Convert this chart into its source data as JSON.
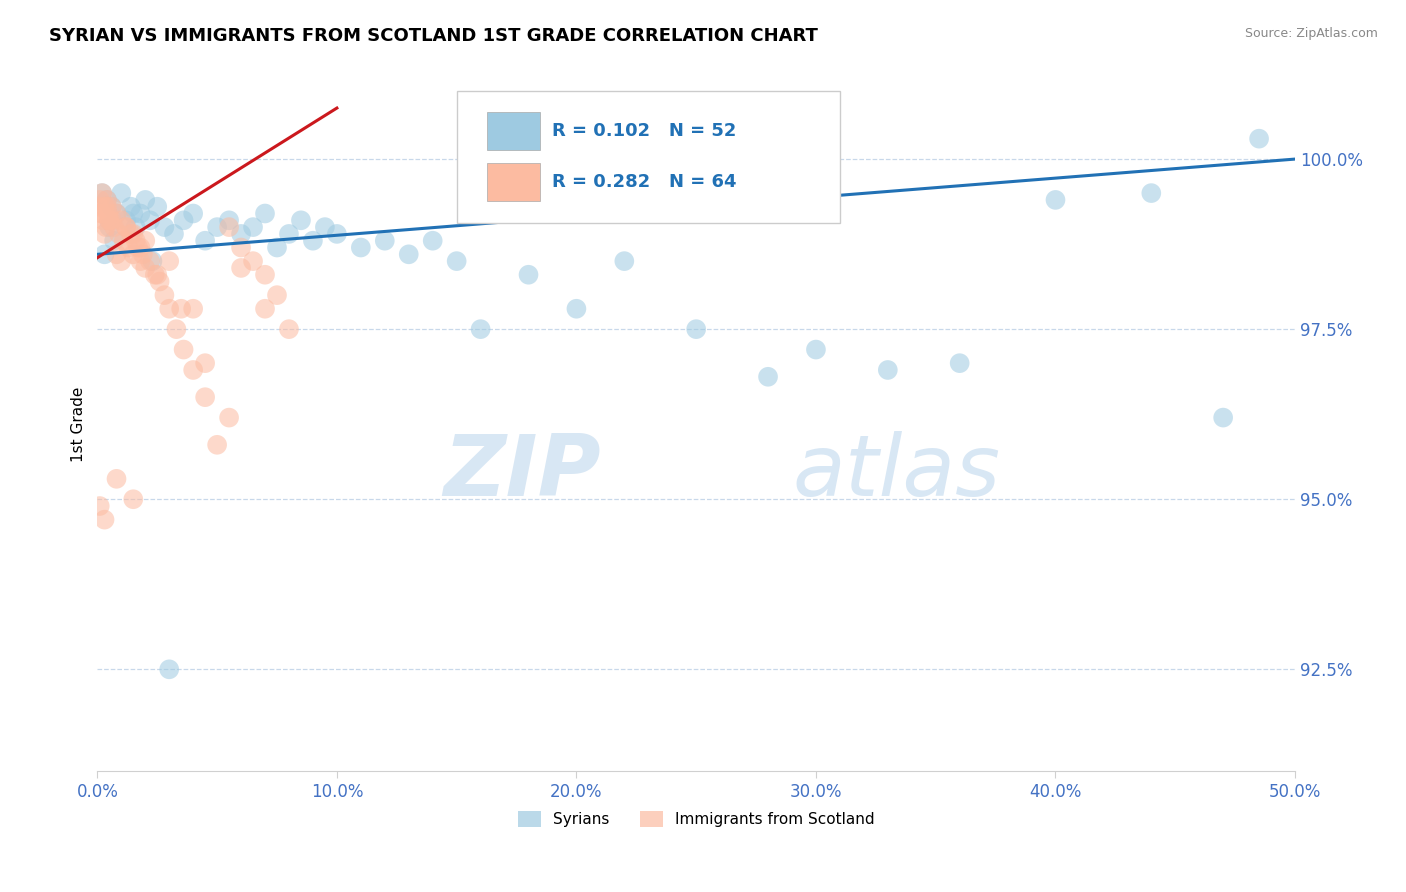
{
  "title": "SYRIAN VS IMMIGRANTS FROM SCOTLAND 1ST GRADE CORRELATION CHART",
  "source_text": "Source: ZipAtlas.com",
  "ylabel": "1st Grade",
  "xlim": [
    0.0,
    50.0
  ],
  "ylim": [
    91.0,
    101.2
  ],
  "yticks": [
    92.5,
    95.0,
    97.5,
    100.0
  ],
  "ytick_labels": [
    "92.5%",
    "95.0%",
    "97.5%",
    "100.0%"
  ],
  "xticks": [
    0.0,
    10.0,
    20.0,
    30.0,
    40.0,
    50.0
  ],
  "xtick_labels": [
    "0.0%",
    "10.0%",
    "20.0%",
    "30.0%",
    "40.0%",
    "50.0%"
  ],
  "blue_color": "#9ecae1",
  "pink_color": "#fcbba1",
  "blue_line_color": "#2171b5",
  "pink_line_color": "#cb181d",
  "legend_text_color": "#2171b5",
  "blue_line_slope": 0.028,
  "blue_line_intercept": 98.6,
  "pink_line_slope": 0.22,
  "pink_line_intercept": 98.55,
  "blue_scatter_x": [
    0.2,
    0.4,
    0.6,
    0.8,
    1.0,
    1.2,
    1.4,
    1.6,
    1.8,
    2.0,
    2.2,
    2.5,
    2.8,
    3.2,
    3.6,
    4.0,
    4.5,
    5.0,
    5.5,
    6.0,
    6.5,
    7.0,
    7.5,
    8.0,
    8.5,
    9.0,
    9.5,
    10.0,
    11.0,
    12.0,
    13.0,
    14.0,
    15.0,
    16.0,
    18.0,
    20.0,
    22.0,
    25.0,
    28.0,
    30.0,
    33.0,
    36.0,
    40.0,
    44.0,
    47.0,
    0.3,
    0.5,
    0.7,
    1.5,
    2.3,
    3.0,
    48.5
  ],
  "blue_scatter_y": [
    99.5,
    99.4,
    99.3,
    99.2,
    99.5,
    99.1,
    99.3,
    99.0,
    99.2,
    99.4,
    99.1,
    99.3,
    99.0,
    98.9,
    99.1,
    99.2,
    98.8,
    99.0,
    99.1,
    98.9,
    99.0,
    99.2,
    98.7,
    98.9,
    99.1,
    98.8,
    99.0,
    98.9,
    98.7,
    98.8,
    98.6,
    98.8,
    98.5,
    97.5,
    98.3,
    97.8,
    98.5,
    97.5,
    96.8,
    97.2,
    96.9,
    97.0,
    99.4,
    99.5,
    96.2,
    98.6,
    99.0,
    98.8,
    99.2,
    98.5,
    92.5,
    100.3
  ],
  "pink_scatter_x": [
    0.05,
    0.1,
    0.15,
    0.2,
    0.25,
    0.3,
    0.35,
    0.4,
    0.45,
    0.5,
    0.6,
    0.7,
    0.8,
    0.9,
    1.0,
    1.1,
    1.2,
    1.3,
    1.4,
    1.5,
    1.6,
    1.7,
    1.8,
    1.9,
    2.0,
    2.2,
    2.4,
    2.6,
    2.8,
    3.0,
    3.3,
    3.6,
    4.0,
    4.5,
    5.0,
    5.5,
    6.0,
    6.5,
    7.0,
    7.5,
    8.0,
    0.3,
    0.5,
    0.8,
    1.2,
    1.8,
    2.5,
    3.5,
    4.5,
    5.5,
    1.0,
    0.4,
    0.6,
    2.0,
    3.0,
    4.0,
    1.5,
    6.0,
    0.2,
    7.0,
    0.1,
    0.3,
    0.8,
    1.5
  ],
  "pink_scatter_y": [
    99.3,
    99.4,
    99.2,
    99.5,
    99.1,
    99.3,
    99.0,
    99.4,
    99.2,
    99.1,
    99.3,
    99.0,
    99.2,
    98.9,
    99.1,
    98.8,
    99.0,
    98.7,
    98.9,
    98.6,
    98.8,
    98.7,
    98.5,
    98.6,
    98.4,
    98.5,
    98.3,
    98.2,
    98.0,
    97.8,
    97.5,
    97.2,
    96.9,
    96.5,
    95.8,
    99.0,
    98.7,
    98.5,
    98.3,
    98.0,
    97.5,
    98.9,
    99.1,
    98.6,
    99.0,
    98.7,
    98.3,
    97.8,
    97.0,
    96.2,
    98.5,
    99.3,
    99.1,
    98.8,
    98.5,
    97.8,
    98.9,
    98.4,
    99.2,
    97.8,
    94.9,
    94.7,
    95.3,
    95.0
  ],
  "watermark_zip": "ZIP",
  "watermark_atlas": "atlas",
  "background_color": "#ffffff",
  "grid_color": "#c8d8ea",
  "tick_color": "#4472c4",
  "axis_color": "#d0d0d0"
}
